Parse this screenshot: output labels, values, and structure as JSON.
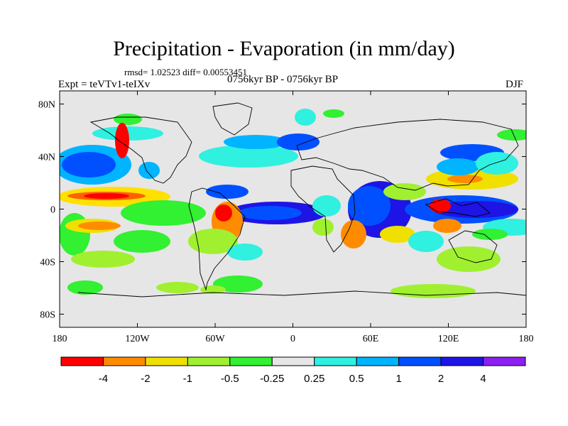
{
  "title": "Precipitation - Evaporation (in mm/day)",
  "stats": "rmsd= 1.02523 diff= 0.00553451",
  "experiment": "Expt = teVTv1-teIXv",
  "period": "0756kyr BP - 0756kyr BP",
  "season": "DJF",
  "map": {
    "x_ticks": [
      {
        "lon": -180,
        "label": "180"
      },
      {
        "lon": -120,
        "label": "120W"
      },
      {
        "lon": -60,
        "label": "60W"
      },
      {
        "lon": 0,
        "label": "0"
      },
      {
        "lon": 60,
        "label": "60E"
      },
      {
        "lon": 120,
        "label": "120E"
      },
      {
        "lon": 180,
        "label": "180"
      }
    ],
    "y_ticks": [
      {
        "lat": 80,
        "label": "80N"
      },
      {
        "lat": 40,
        "label": "40N"
      },
      {
        "lat": 0,
        "label": "0"
      },
      {
        "lat": -40,
        "label": "40S"
      },
      {
        "lat": -80,
        "label": "80S"
      }
    ],
    "lon_range": [
      -180,
      180
    ],
    "lat_range": [
      -90,
      90
    ]
  },
  "colorbar": {
    "colors": [
      "#ff0000",
      "#ff8c00",
      "#f0e000",
      "#a0f030",
      "#32f032",
      "#e6e6e6",
      "#30f0e0",
      "#00b4ff",
      "#0050ff",
      "#1e14e6",
      "#8c20f0"
    ],
    "labels": [
      "-4",
      "-2",
      "-1",
      "-0.5",
      "-0.25",
      "0.25",
      "0.5",
      "1",
      "2",
      "4"
    ]
  }
}
